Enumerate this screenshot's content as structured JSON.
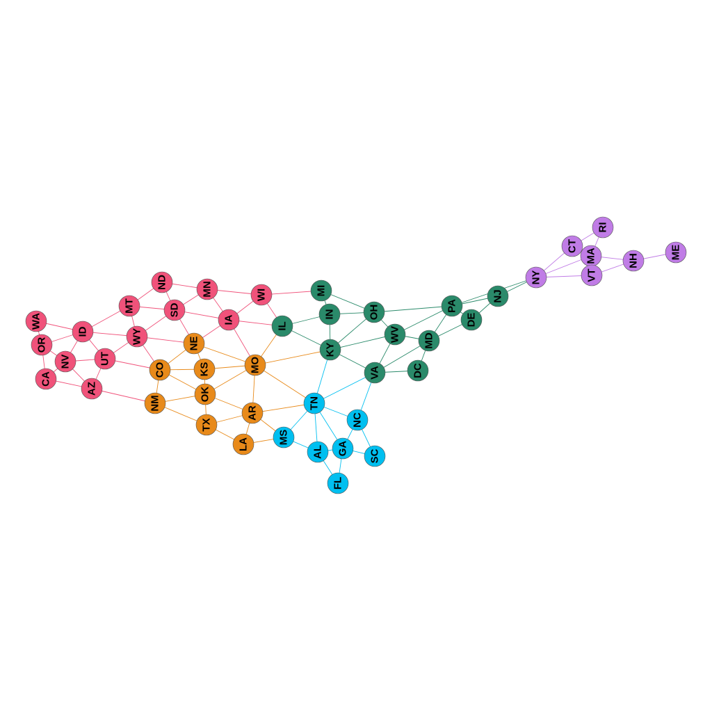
{
  "graph": {
    "type": "network",
    "label_rotation": "vertical",
    "groups": {
      "west": {
        "color": "#F0527A"
      },
      "central": {
        "color": "#E88A1A"
      },
      "southeast": {
        "color": "#00BFF0"
      },
      "midatlantic": {
        "color": "#2A8A6A"
      },
      "newengland": {
        "color": "#C07CE6"
      }
    },
    "nodes": [
      {
        "id": "WA",
        "label": "WA",
        "group": "west"
      },
      {
        "id": "OR",
        "label": "OR",
        "group": "west"
      },
      {
        "id": "CA",
        "label": "CA",
        "group": "west"
      },
      {
        "id": "NV",
        "label": "NV",
        "group": "west"
      },
      {
        "id": "ID",
        "label": "ID",
        "group": "west"
      },
      {
        "id": "UT",
        "label": "UT",
        "group": "west"
      },
      {
        "id": "AZ",
        "label": "AZ",
        "group": "west"
      },
      {
        "id": "MT",
        "label": "MT",
        "group": "west"
      },
      {
        "id": "WY",
        "label": "WY",
        "group": "west"
      },
      {
        "id": "ND",
        "label": "ND",
        "group": "west"
      },
      {
        "id": "SD",
        "label": "SD",
        "group": "west"
      },
      {
        "id": "MN",
        "label": "MN",
        "group": "west"
      },
      {
        "id": "IA",
        "label": "IA",
        "group": "west"
      },
      {
        "id": "WI",
        "label": "WI",
        "group": "west"
      },
      {
        "id": "CO",
        "label": "CO",
        "group": "central"
      },
      {
        "id": "NE",
        "label": "NE",
        "group": "central"
      },
      {
        "id": "KS",
        "label": "KS",
        "group": "central"
      },
      {
        "id": "OK",
        "label": "OK",
        "group": "central"
      },
      {
        "id": "NM",
        "label": "NM",
        "group": "central"
      },
      {
        "id": "TX",
        "label": "TX",
        "group": "central"
      },
      {
        "id": "MO",
        "label": "MO",
        "group": "central"
      },
      {
        "id": "AR",
        "label": "AR",
        "group": "central"
      },
      {
        "id": "LA",
        "label": "LA",
        "group": "central"
      },
      {
        "id": "TN",
        "label": "TN",
        "group": "southeast"
      },
      {
        "id": "MS",
        "label": "MS",
        "group": "southeast"
      },
      {
        "id": "AL",
        "label": "AL",
        "group": "southeast"
      },
      {
        "id": "GA",
        "label": "GA",
        "group": "southeast"
      },
      {
        "id": "FL",
        "label": "FL",
        "group": "southeast"
      },
      {
        "id": "NC",
        "label": "NC",
        "group": "southeast"
      },
      {
        "id": "SC",
        "label": "SC",
        "group": "southeast"
      },
      {
        "id": "IL",
        "label": "IL",
        "group": "midatlantic"
      },
      {
        "id": "MI",
        "label": "MI",
        "group": "midatlantic"
      },
      {
        "id": "IN",
        "label": "IN",
        "group": "midatlantic"
      },
      {
        "id": "OH",
        "label": "OH",
        "group": "midatlantic"
      },
      {
        "id": "KY",
        "label": "KY",
        "group": "midatlantic"
      },
      {
        "id": "WV",
        "label": "WV",
        "group": "midatlantic"
      },
      {
        "id": "VA",
        "label": "VA",
        "group": "midatlantic"
      },
      {
        "id": "MD",
        "label": "MD",
        "group": "midatlantic"
      },
      {
        "id": "DC",
        "label": "DC",
        "group": "midatlantic"
      },
      {
        "id": "PA",
        "label": "PA",
        "group": "midatlantic"
      },
      {
        "id": "DE",
        "label": "DE",
        "group": "midatlantic"
      },
      {
        "id": "NJ",
        "label": "NJ",
        "group": "midatlantic"
      },
      {
        "id": "NY",
        "label": "NY",
        "group": "newengland"
      },
      {
        "id": "CT",
        "label": "CT",
        "group": "newengland"
      },
      {
        "id": "RI",
        "label": "RI",
        "group": "newengland"
      },
      {
        "id": "MA",
        "label": "MA",
        "group": "newengland"
      },
      {
        "id": "VT",
        "label": "VT",
        "group": "newengland"
      },
      {
        "id": "NH",
        "label": "NH",
        "group": "newengland"
      },
      {
        "id": "ME",
        "label": "ME",
        "group": "newengland"
      }
    ],
    "edges": [
      [
        "WA",
        "OR"
      ],
      [
        "WA",
        "ID"
      ],
      [
        "OR",
        "ID"
      ],
      [
        "OR",
        "NV"
      ],
      [
        "OR",
        "CA"
      ],
      [
        "CA",
        "NV"
      ],
      [
        "CA",
        "AZ"
      ],
      [
        "NV",
        "ID"
      ],
      [
        "NV",
        "UT"
      ],
      [
        "NV",
        "AZ"
      ],
      [
        "ID",
        "UT"
      ],
      [
        "ID",
        "WY"
      ],
      [
        "ID",
        "MT"
      ],
      [
        "UT",
        "AZ"
      ],
      [
        "UT",
        "WY"
      ],
      [
        "UT",
        "CO"
      ],
      [
        "AZ",
        "NM"
      ],
      [
        "MT",
        "WY"
      ],
      [
        "MT",
        "ND"
      ],
      [
        "MT",
        "SD"
      ],
      [
        "WY",
        "SD"
      ],
      [
        "WY",
        "NE"
      ],
      [
        "WY",
        "CO"
      ],
      [
        "ND",
        "SD"
      ],
      [
        "ND",
        "MN"
      ],
      [
        "SD",
        "MN"
      ],
      [
        "SD",
        "NE"
      ],
      [
        "SD",
        "IA"
      ],
      [
        "MN",
        "IA"
      ],
      [
        "MN",
        "WI"
      ],
      [
        "IA",
        "WI"
      ],
      [
        "IA",
        "NE"
      ],
      [
        "IA",
        "MO"
      ],
      [
        "IA",
        "IL"
      ],
      [
        "WI",
        "IL"
      ],
      [
        "WI",
        "MI"
      ],
      [
        "CO",
        "NE"
      ],
      [
        "CO",
        "KS"
      ],
      [
        "CO",
        "OK"
      ],
      [
        "CO",
        "NM"
      ],
      [
        "NE",
        "KS"
      ],
      [
        "NE",
        "MO"
      ],
      [
        "KS",
        "OK"
      ],
      [
        "KS",
        "MO"
      ],
      [
        "OK",
        "NM"
      ],
      [
        "OK",
        "TX"
      ],
      [
        "OK",
        "AR"
      ],
      [
        "OK",
        "MO"
      ],
      [
        "NM",
        "TX"
      ],
      [
        "TX",
        "AR"
      ],
      [
        "TX",
        "LA"
      ],
      [
        "MO",
        "AR"
      ],
      [
        "MO",
        "IL"
      ],
      [
        "MO",
        "KY"
      ],
      [
        "MO",
        "TN"
      ],
      [
        "AR",
        "LA"
      ],
      [
        "AR",
        "TN"
      ],
      [
        "AR",
        "MS"
      ],
      [
        "LA",
        "MS"
      ],
      [
        "TN",
        "MS"
      ],
      [
        "TN",
        "AL"
      ],
      [
        "TN",
        "GA"
      ],
      [
        "TN",
        "NC"
      ],
      [
        "TN",
        "KY"
      ],
      [
        "TN",
        "VA"
      ],
      [
        "MS",
        "AL"
      ],
      [
        "AL",
        "GA"
      ],
      [
        "AL",
        "FL"
      ],
      [
        "GA",
        "FL"
      ],
      [
        "GA",
        "NC"
      ],
      [
        "GA",
        "SC"
      ],
      [
        "NC",
        "SC"
      ],
      [
        "NC",
        "VA"
      ],
      [
        "IL",
        "IN"
      ],
      [
        "IL",
        "KY"
      ],
      [
        "MI",
        "IN"
      ],
      [
        "MI",
        "OH"
      ],
      [
        "IN",
        "OH"
      ],
      [
        "IN",
        "KY"
      ],
      [
        "OH",
        "KY"
      ],
      [
        "OH",
        "WV"
      ],
      [
        "OH",
        "PA"
      ],
      [
        "KY",
        "WV"
      ],
      [
        "KY",
        "VA"
      ],
      [
        "WV",
        "VA"
      ],
      [
        "WV",
        "MD"
      ],
      [
        "WV",
        "PA"
      ],
      [
        "VA",
        "MD"
      ],
      [
        "VA",
        "DC"
      ],
      [
        "MD",
        "DC"
      ],
      [
        "MD",
        "PA"
      ],
      [
        "MD",
        "DE"
      ],
      [
        "PA",
        "DE"
      ],
      [
        "PA",
        "NJ"
      ],
      [
        "PA",
        "NY"
      ],
      [
        "DE",
        "NJ"
      ],
      [
        "NJ",
        "NY"
      ],
      [
        "NY",
        "CT"
      ],
      [
        "NY",
        "MA"
      ],
      [
        "NY",
        "VT"
      ],
      [
        "CT",
        "RI"
      ],
      [
        "CT",
        "MA"
      ],
      [
        "RI",
        "MA"
      ],
      [
        "MA",
        "VT"
      ],
      [
        "MA",
        "NH"
      ],
      [
        "VT",
        "NH"
      ],
      [
        "NH",
        "ME"
      ]
    ]
  }
}
